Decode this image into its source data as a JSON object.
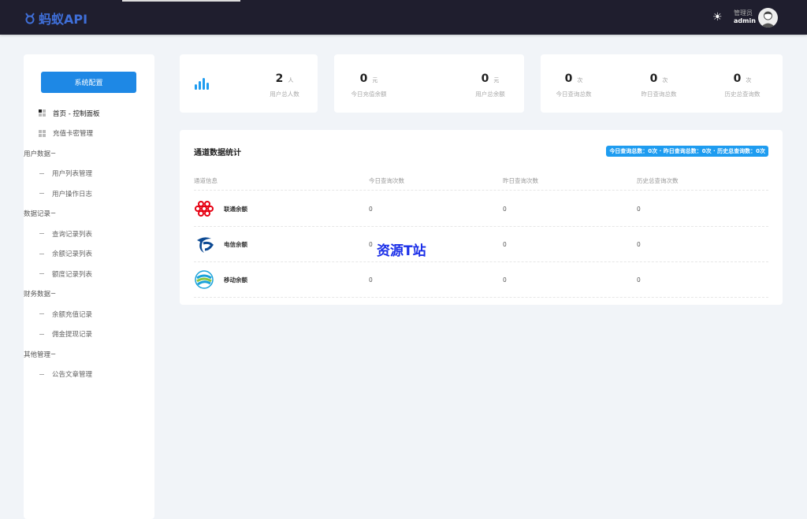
{
  "header": {
    "logo": "蚂蚁API",
    "role": "管理员",
    "username": "admin"
  },
  "sidebar": {
    "button": "系统配置",
    "items": [
      {
        "type": "top",
        "label": "首页 - 控制面板",
        "active": true
      },
      {
        "type": "top",
        "label": "充值卡密管理"
      },
      {
        "type": "group",
        "label": "用户数据"
      },
      {
        "type": "sub",
        "label": "用户列表管理"
      },
      {
        "type": "sub",
        "label": "用户操作日志"
      },
      {
        "type": "group",
        "label": "数据记录"
      },
      {
        "type": "sub",
        "label": "查询记录列表"
      },
      {
        "type": "sub",
        "label": "余额记录列表"
      },
      {
        "type": "sub",
        "label": "额度记录列表"
      },
      {
        "type": "group",
        "label": "财务数据"
      },
      {
        "type": "sub",
        "label": "余额充值记录"
      },
      {
        "type": "sub",
        "label": "佣金提现记录"
      },
      {
        "type": "group",
        "label": "其他管理"
      },
      {
        "type": "sub",
        "label": "公告文章管理"
      }
    ]
  },
  "stats": {
    "users": {
      "value": "2",
      "unit": "人",
      "label": "用户总人数"
    },
    "today_recharge": {
      "value": "0",
      "unit": "元",
      "label": "今日充值余额"
    },
    "total_balance": {
      "value": "0",
      "unit": "元",
      "label": "用户总余额"
    },
    "today_queries": {
      "value": "0",
      "unit": "次",
      "label": "今日查询总数"
    },
    "yesterday_queries": {
      "value": "0",
      "unit": "次",
      "label": "昨日查询总数"
    },
    "history_queries": {
      "value": "0",
      "unit": "次",
      "label": "历史总查询数"
    }
  },
  "channel": {
    "title": "通道数据统计",
    "badge": "今日查询总数：0次 · 昨日查询总数：0次 · 历史总查询数：0次",
    "columns": [
      "通道信息",
      "今日查询次数",
      "昨日查询次数",
      "历史总查询次数"
    ],
    "rows": [
      {
        "name": "联通余额",
        "icon": "china-unicom-logo",
        "today": "0",
        "yesterday": "0",
        "history": "0"
      },
      {
        "name": "电信余额",
        "icon": "china-telecom-logo",
        "today": "0",
        "yesterday": "0",
        "history": "0"
      },
      {
        "name": "移动余额",
        "icon": "china-mobile-logo",
        "today": "0",
        "yesterday": "0",
        "history": "0"
      }
    ]
  },
  "watermark": "资源T站",
  "colors": {
    "header": "#1f1e2e",
    "accent": "#1e88e5",
    "badge": "#1e9cf0"
  }
}
